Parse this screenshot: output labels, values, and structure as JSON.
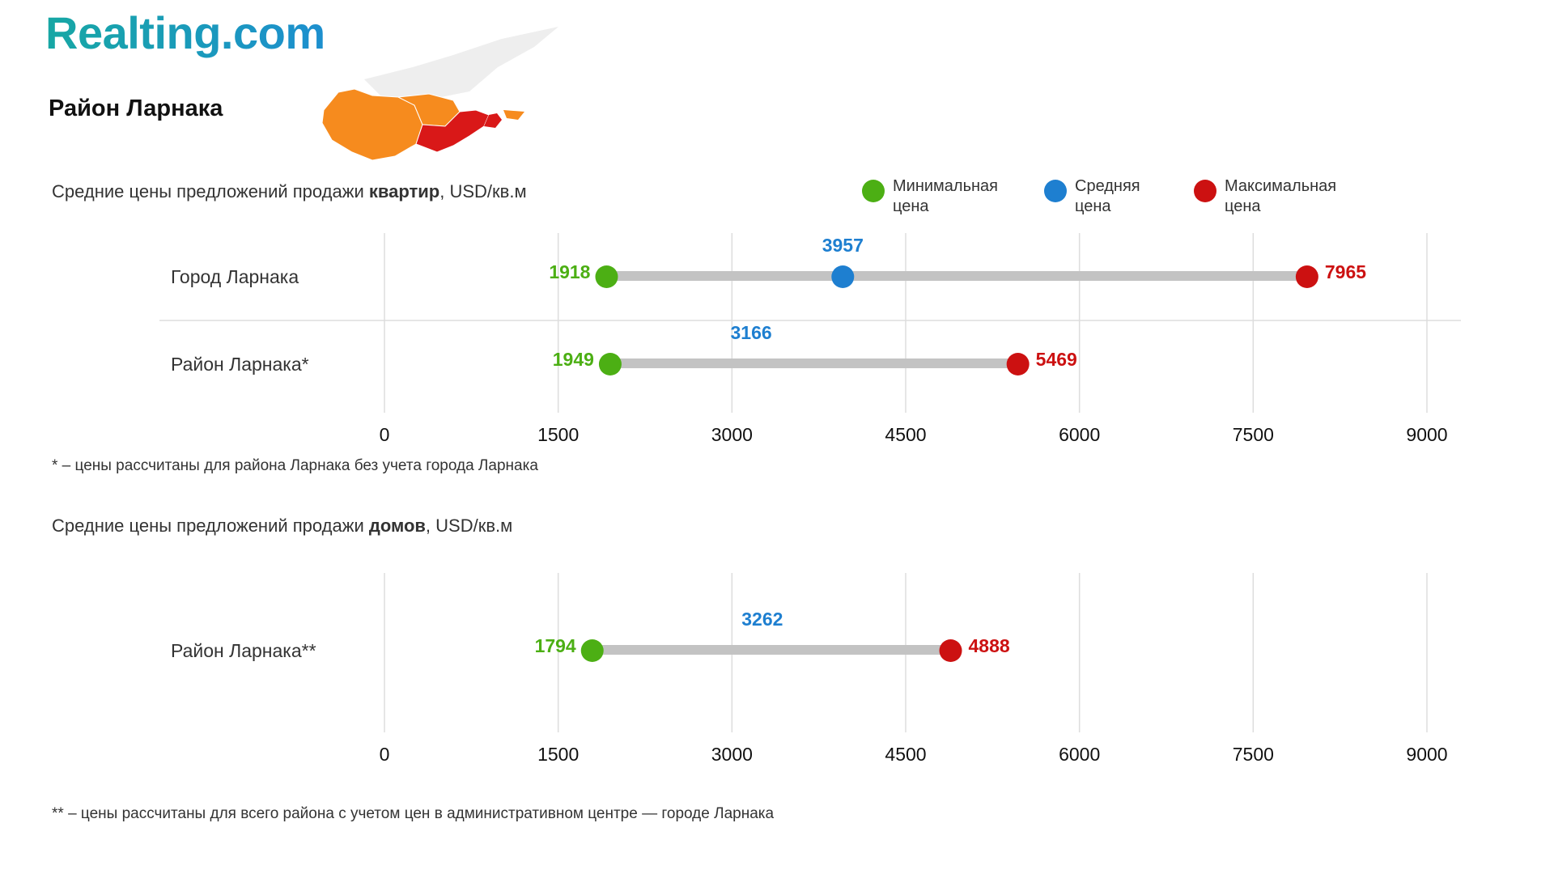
{
  "brand": "Realting.com",
  "region_title": "Район Ларнака",
  "colors": {
    "min": "#4caf14",
    "avg": "#1e7fd0",
    "max": "#cc1111",
    "bar": "#c3c3c3",
    "grid": "#dddddd",
    "map_orange": "#f68b1e",
    "map_red": "#d91818"
  },
  "legend": {
    "min": {
      "line1": "Минимальная",
      "line2": "цена"
    },
    "avg": {
      "line1": "Средняя",
      "line2": "цена"
    },
    "max": {
      "line1": "Максимальная",
      "line2": "цена"
    }
  },
  "sections": {
    "apartments": {
      "title_before": "Средние цены предложений продажи ",
      "title_bold": "квартир",
      "title_after": ", USD/кв.м",
      "footnote": "* – цены рассчитаны для района Ларнака без учета города Ларнака"
    },
    "houses": {
      "title_before": "Средние цены предложений продажи ",
      "title_bold": "домов",
      "title_after": ", USD/кв.м",
      "footnote": "** – цены рассчитаны для всего района с учетом цен в административном центре — городе Ларнака"
    }
  },
  "chart_data": [
    {
      "type": "dumbbell",
      "title": "Средние цены предложений продажи квартир, USD/кв.м",
      "xlim": [
        0,
        9000
      ],
      "ticks": [
        0,
        1500,
        3000,
        4500,
        6000,
        7500,
        9000
      ],
      "tick_labels": [
        "0",
        "1500",
        "3000",
        "4500",
        "6000",
        "7500",
        "9000"
      ],
      "rows": [
        {
          "label": "Город Ларнака",
          "min": 1918,
          "avg": 3957,
          "max": 7965,
          "min_label": "1918",
          "avg_label": "3957",
          "max_label": "7965"
        },
        {
          "label": "Район Ларнака*",
          "min": 1949,
          "avg": 3166,
          "max": 5469,
          "min_label": "1949",
          "avg_label": "3166",
          "max_label": "5469"
        }
      ]
    },
    {
      "type": "dumbbell",
      "title": "Средние цены предложений продажи домов, USD/кв.м",
      "xlim": [
        0,
        9000
      ],
      "ticks": [
        0,
        1500,
        3000,
        4500,
        6000,
        7500,
        9000
      ],
      "tick_labels": [
        "0",
        "1500",
        "3000",
        "4500",
        "6000",
        "7500",
        "9000"
      ],
      "rows": [
        {
          "label": "Район Ларнака**",
          "min": 1794,
          "avg": 3262,
          "max": 4888,
          "min_label": "1794",
          "avg_label": "3262",
          "max_label": "4888"
        }
      ]
    }
  ]
}
